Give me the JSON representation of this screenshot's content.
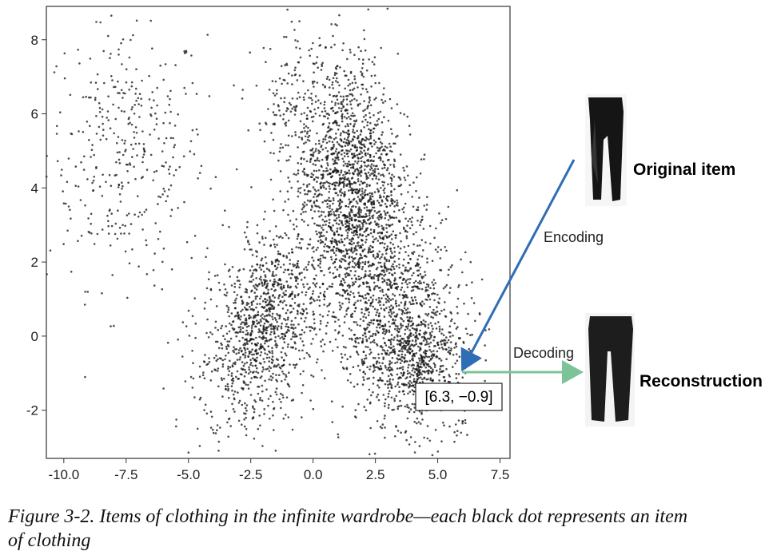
{
  "chart_data": {
    "type": "scatter",
    "xlim": [
      -10.7,
      7.9
    ],
    "ylim": [
      -3.3,
      8.9
    ],
    "x_ticks": [
      -10.0,
      -7.5,
      -5.0,
      -2.5,
      0.0,
      2.5,
      5.0,
      7.5
    ],
    "x_tick_labels": [
      "-10.0",
      "-7.5",
      "-5.0",
      "-2.5",
      "0.0",
      "2.5",
      "5.0",
      "7.5"
    ],
    "y_ticks": [
      8,
      6,
      4,
      2,
      0,
      -2
    ],
    "y_tick_labels": [
      "8",
      "6",
      "4",
      "2",
      "0",
      "-2"
    ],
    "grid": false,
    "point_color": "#111111",
    "clusters": [
      {
        "cx": -7.5,
        "cy": 5.0,
        "sx": 1.6,
        "sy": 1.8,
        "n": 380,
        "angle": 0
      },
      {
        "cx": -2.1,
        "cy": 0.2,
        "sx": 1.0,
        "sy": 1.4,
        "n": 1100,
        "angle": -35
      },
      {
        "cx": 1.4,
        "cy": 4.2,
        "sx": 1.0,
        "sy": 1.7,
        "n": 1400,
        "angle": 0
      },
      {
        "cx": 3.0,
        "cy": 1.0,
        "sx": 1.3,
        "sy": 1.9,
        "n": 1300,
        "angle": 30
      },
      {
        "cx": 4.2,
        "cy": -0.6,
        "sx": 1.0,
        "sy": 0.7,
        "n": 500,
        "angle": 0
      },
      {
        "cx": -0.8,
        "cy": 6.0,
        "sx": 0.8,
        "sy": 1.0,
        "n": 150,
        "angle": 0
      }
    ],
    "highlight_point": {
      "x": 6.3,
      "y": -0.9,
      "label": "[6.3, −0.9]"
    }
  },
  "annotations": {
    "encoding": "Encoding",
    "decoding": "Decoding",
    "original_item": "Original item",
    "reconstruction": "Reconstruction",
    "encode_arrow_color": "#2f6db5",
    "decode_arrow_color": "#7cc497"
  },
  "caption": {
    "line1": "Figure 3-2. Items of clothing in the infinite wardrobe—each black dot represents an item",
    "line2": "of clothing"
  }
}
